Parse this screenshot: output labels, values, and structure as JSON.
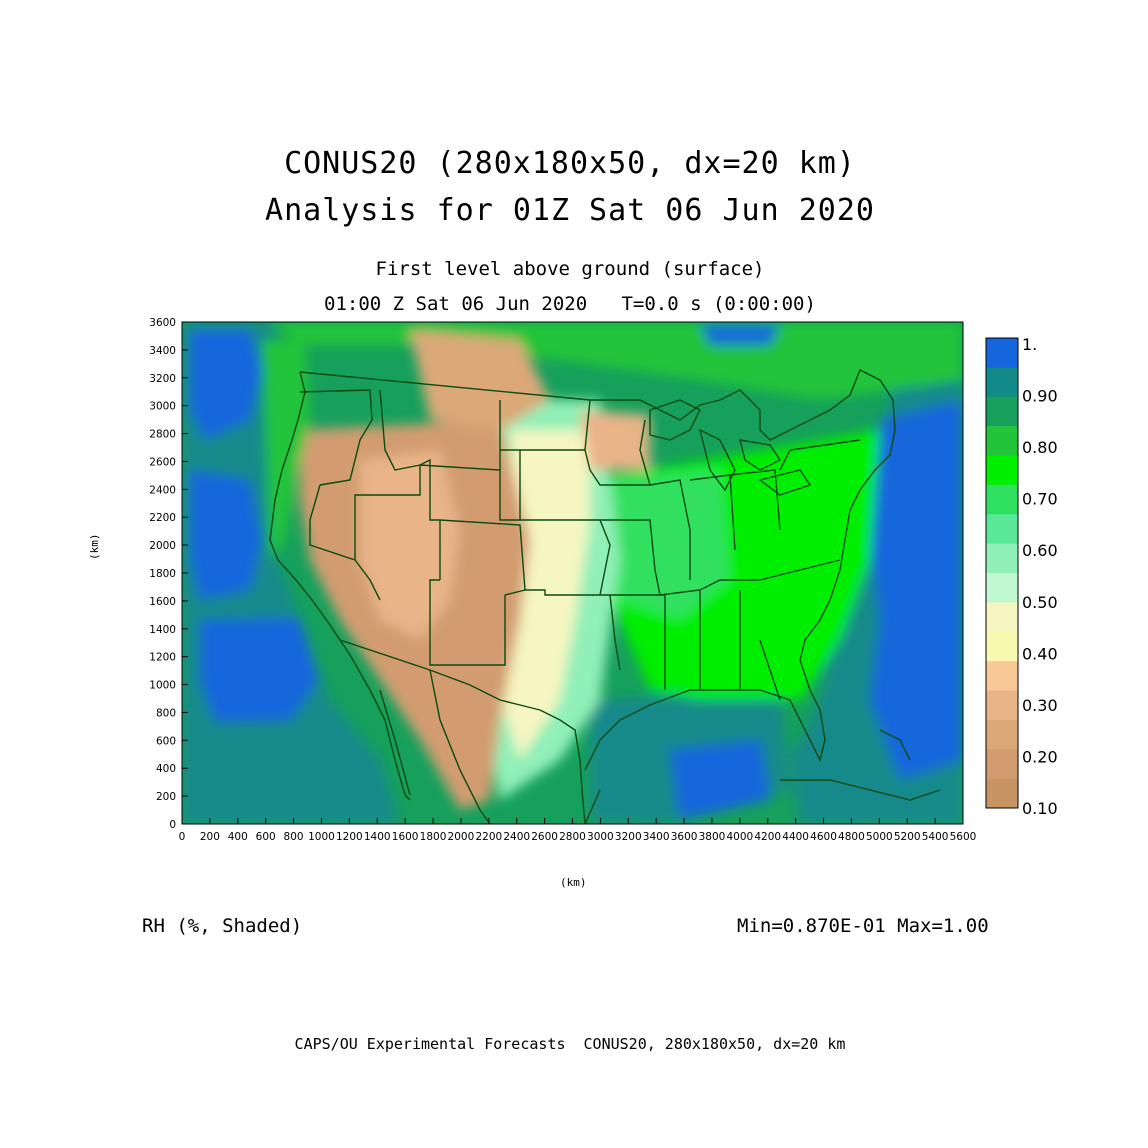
{
  "titles": {
    "line1": "CONUS20 (280x180x50, dx=20 km)",
    "line2": "Analysis for 01Z Sat 06 Jun 2020",
    "level": "First level above ground (surface)",
    "time": "01:00 Z Sat 06 Jun 2020   T=0.0 s (0:00:00)"
  },
  "axes": {
    "x_label": "(km)",
    "y_label": "(km)",
    "x_ticks": [
      "0",
      "200",
      "400",
      "600",
      "800",
      "1000",
      "1200",
      "1400",
      "1600",
      "1800",
      "2000",
      "2200",
      "2400",
      "2600",
      "2800",
      "3000",
      "3200",
      "3400",
      "3600",
      "3800",
      "4000",
      "4200",
      "4400",
      "4600",
      "4800",
      "5000",
      "5200",
      "5400",
      "5600"
    ],
    "y_ticks": [
      "0",
      "200",
      "400",
      "600",
      "800",
      "1000",
      "1200",
      "1400",
      "1600",
      "1800",
      "2000",
      "2200",
      "2400",
      "2600",
      "2800",
      "3000",
      "3200",
      "3400",
      "3600"
    ],
    "x_range": [
      0,
      5600
    ],
    "y_range": [
      0,
      3600
    ]
  },
  "colorbar": {
    "labels": [
      "1.",
      "0.90",
      "0.80",
      "0.70",
      "0.60",
      "0.50",
      "0.40",
      "0.30",
      "0.20",
      "0.10"
    ],
    "colors": [
      "#1566dc",
      "#138a8a",
      "#16a05c",
      "#22c43a",
      "#00ee00",
      "#30e060",
      "#58e898",
      "#90f0b8",
      "#c0f8d0",
      "#f6f6c2",
      "#f8f8b0",
      "#f8c896",
      "#e8b488",
      "#dca878",
      "#d29c70",
      "#c89464"
    ]
  },
  "field": {
    "variable": "RH (%, Shaded)",
    "minmax": "Min=0.870E-01 Max=1.00"
  },
  "footer": "CAPS/OU Experimental Forecasts  CONUS20, 280x180x50, dx=20 km"
}
